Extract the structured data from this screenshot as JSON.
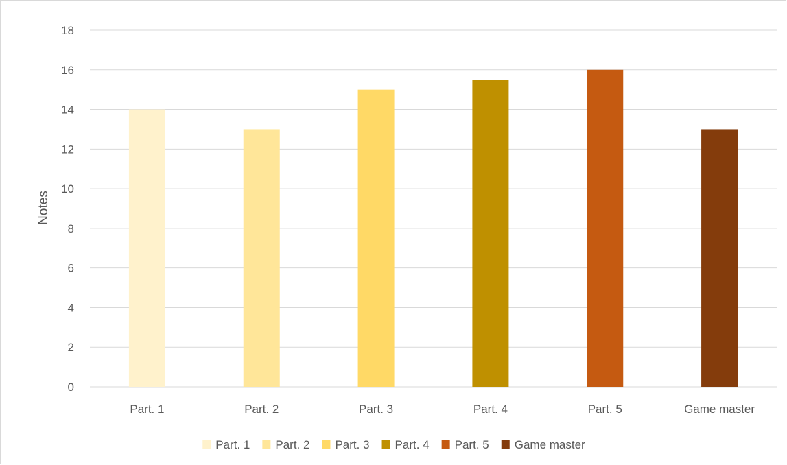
{
  "chart_data": {
    "type": "bar",
    "categories": [
      "Part. 1",
      "Part. 2",
      "Part. 3",
      "Part. 4",
      "Part. 5",
      "Game master"
    ],
    "values": [
      14,
      13,
      15,
      15.5,
      16,
      13
    ],
    "colors": [
      "#fff2cc",
      "#ffe699",
      "#ffd966",
      "#bf9000",
      "#c55a11",
      "#843c0c"
    ],
    "title": "",
    "xlabel": "",
    "ylabel": "Notes",
    "ylim": [
      0,
      18
    ],
    "yticks": [
      0,
      2,
      4,
      6,
      8,
      10,
      12,
      14,
      16,
      18
    ],
    "grid": true,
    "legend": {
      "position": "bottom",
      "entries": [
        "Part. 1",
        "Part. 2",
        "Part. 3",
        "Part. 4",
        "Part. 5",
        "Game master"
      ]
    }
  }
}
